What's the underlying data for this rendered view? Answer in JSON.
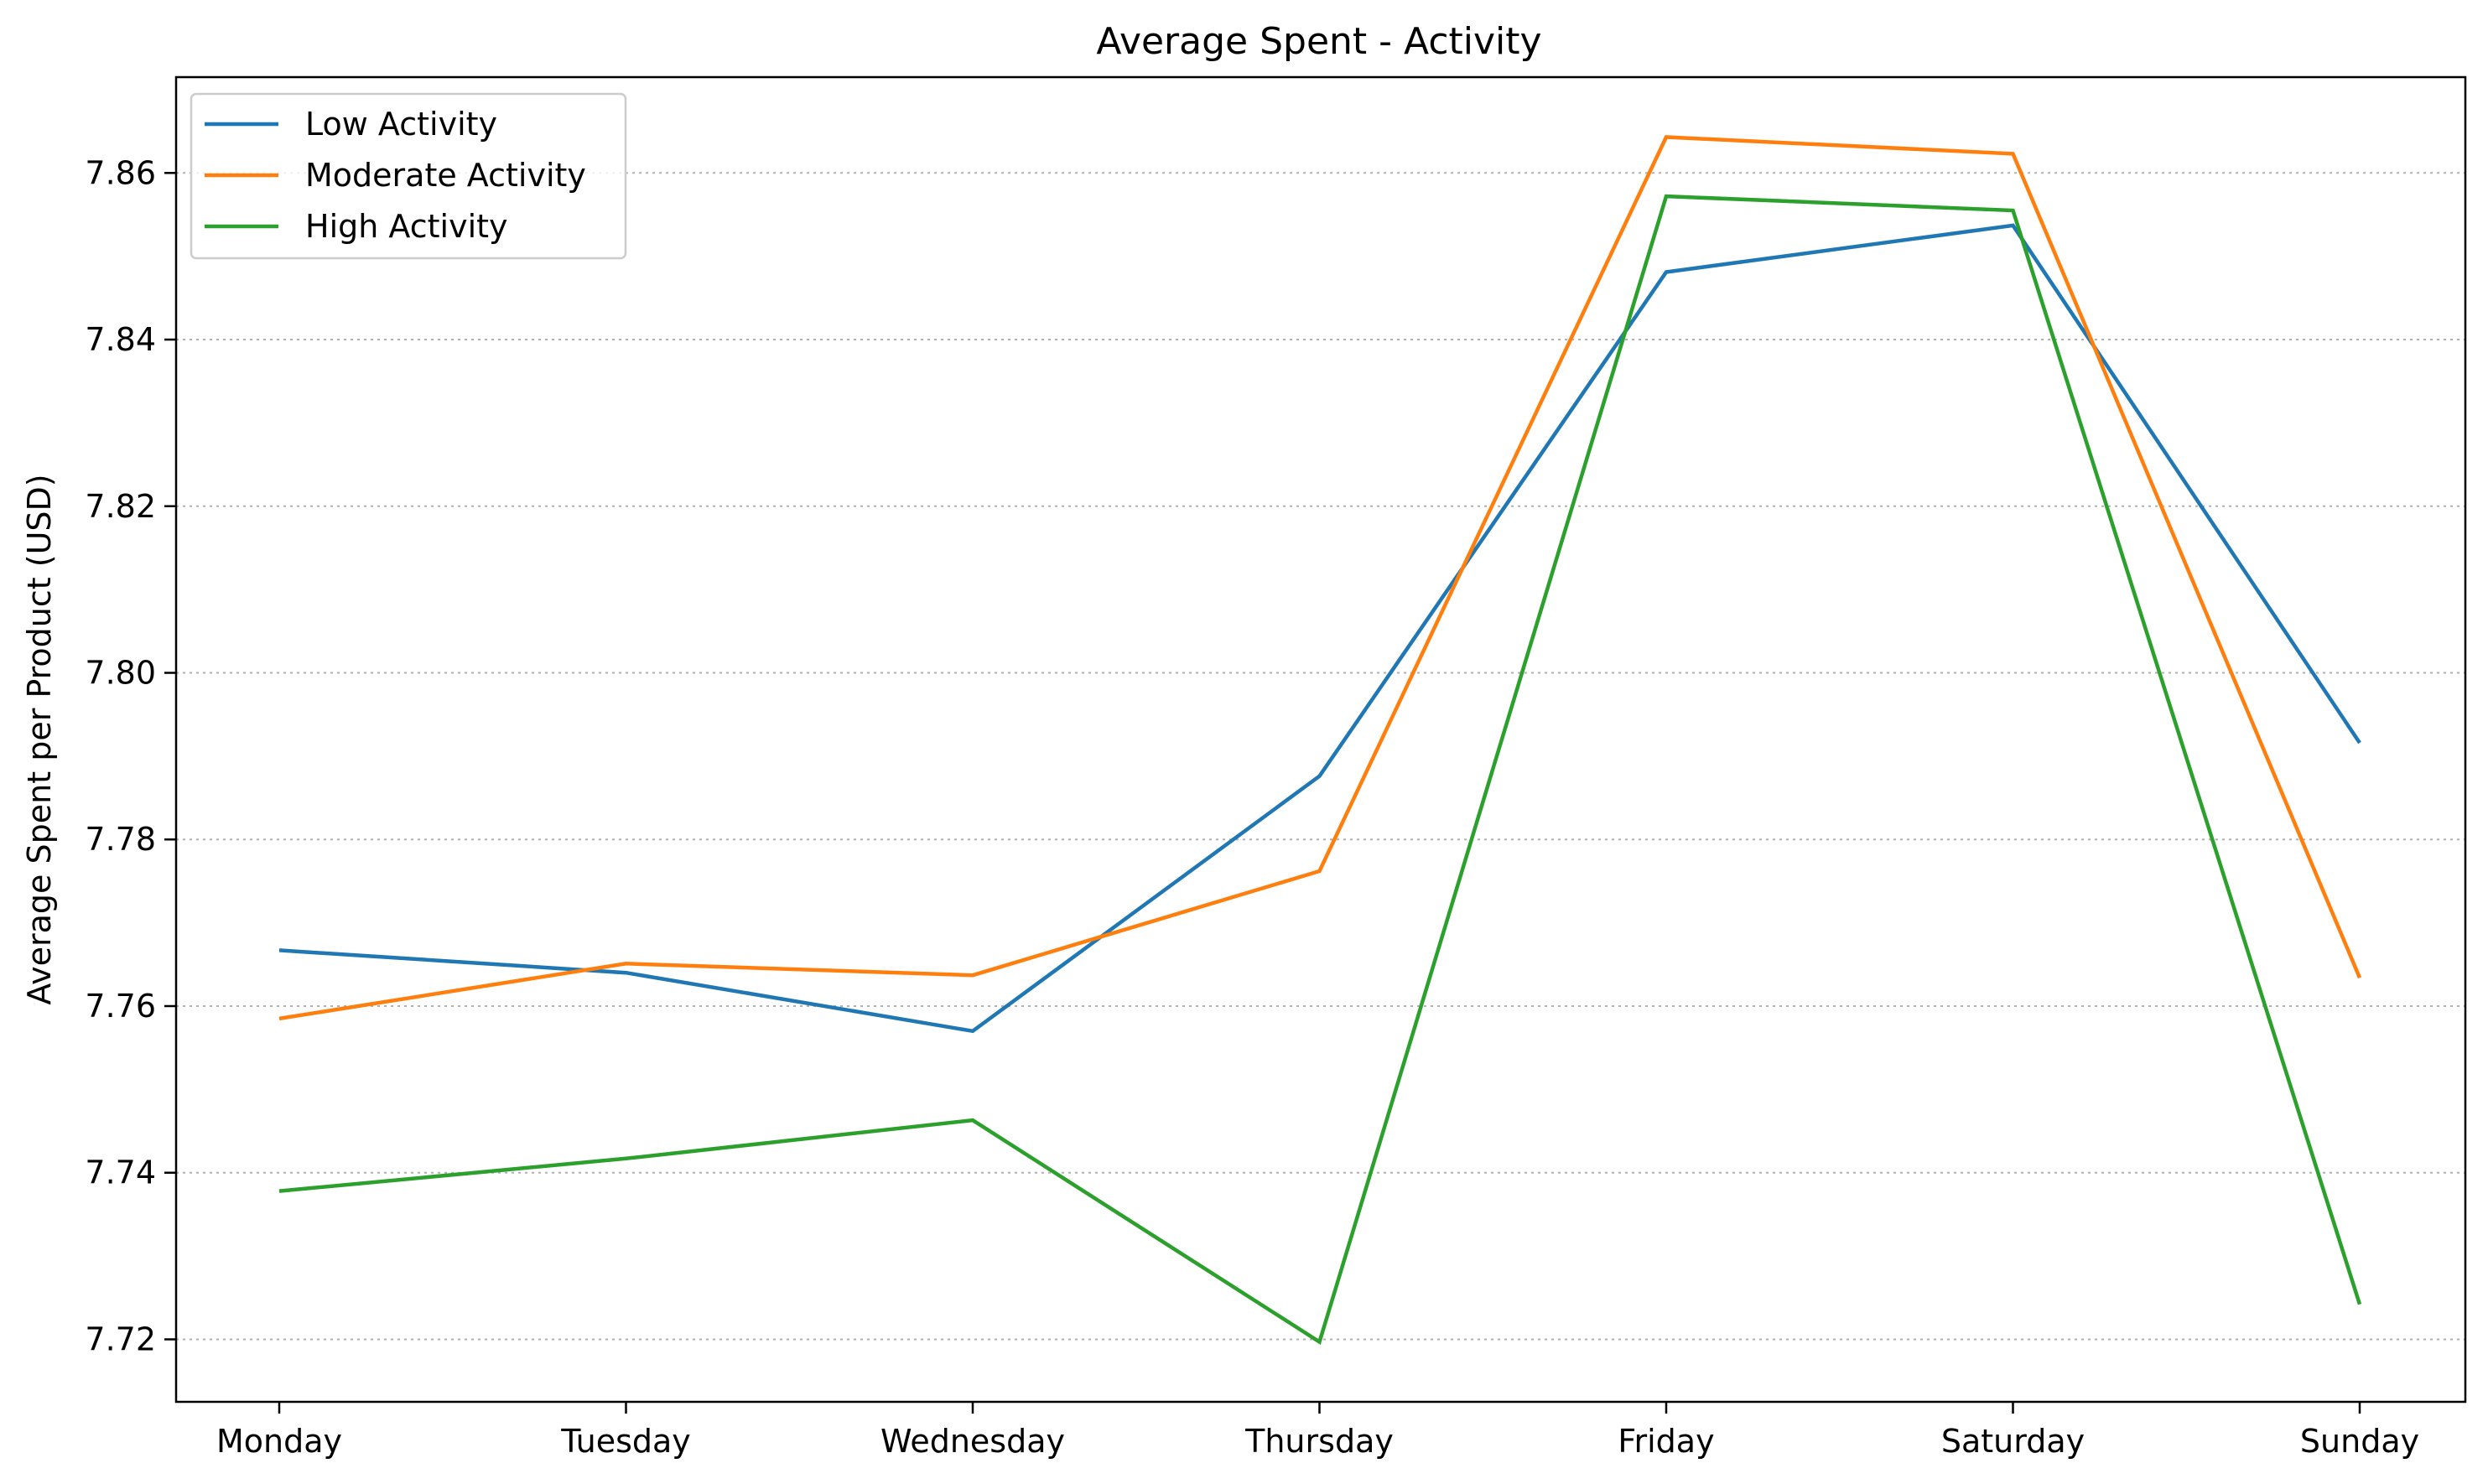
{
  "chart_data": {
    "type": "line",
    "title": "Average Spent - Activity",
    "xlabel": "",
    "ylabel": "Average Spent per Product (USD)",
    "categories": [
      "Monday",
      "Tuesday",
      "Wednesday",
      "Thursday",
      "Friday",
      "Saturday",
      "Sunday"
    ],
    "ylim": [
      7.7125,
      7.8715
    ],
    "yticks": [
      "7.72",
      "7.74",
      "7.76",
      "7.78",
      "7.80",
      "7.82",
      "7.84",
      "7.86"
    ],
    "grid": "horizontal dotted",
    "legend_position": "upper-left",
    "series": [
      {
        "name": "Low Activity",
        "color": "#1f77b4",
        "values": [
          7.7667,
          7.764,
          7.757,
          7.7876,
          7.8481,
          7.8537,
          7.7916
        ]
      },
      {
        "name": "Moderate Activity",
        "color": "#ff7f0e",
        "values": [
          7.7585,
          7.7651,
          7.7637,
          7.7762,
          7.8643,
          7.8623,
          7.7634
        ]
      },
      {
        "name": "High Activity",
        "color": "#2ca02c",
        "values": [
          7.7378,
          7.7417,
          7.7463,
          7.7197,
          7.8572,
          7.8555,
          7.7242
        ]
      }
    ]
  }
}
